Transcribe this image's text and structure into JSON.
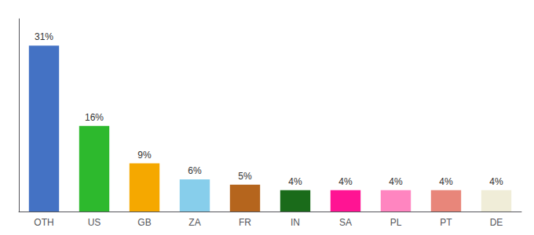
{
  "chart_data": {
    "type": "bar",
    "categories": [
      "OTH",
      "US",
      "GB",
      "ZA",
      "FR",
      "IN",
      "SA",
      "PL",
      "PT",
      "DE"
    ],
    "values": [
      31,
      16,
      9,
      6,
      5,
      4,
      4,
      4,
      4,
      4
    ],
    "value_labels": [
      "31%",
      "16%",
      "9%",
      "6%",
      "5%",
      "4%",
      "4%",
      "4%",
      "4%",
      "4%"
    ],
    "data_labels": true,
    "colors": [
      "#4472c4",
      "#2db92d",
      "#f5a800",
      "#87ceeb",
      "#b5651d",
      "#1a6b1a",
      "#ff1493",
      "#ff85c0",
      "#e8867a",
      "#f0edd8"
    ],
    "ylim": [
      0,
      36
    ],
    "grid": false,
    "tick_labels": "x"
  }
}
